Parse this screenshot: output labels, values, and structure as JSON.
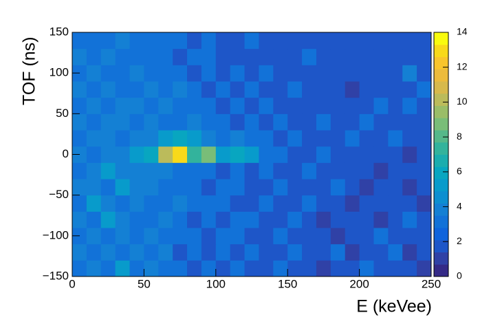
{
  "chart_data": {
    "type": "heatmap",
    "x_label": "E (keVee)",
    "y_label": "TOF (ns)",
    "xbins": [
      0,
      10,
      20,
      30,
      40,
      50,
      60,
      70,
      80,
      90,
      100,
      110,
      120,
      130,
      140,
      150,
      160,
      170,
      180,
      190,
      200,
      210,
      220,
      230,
      240,
      250
    ],
    "ybins": [
      -150,
      -130,
      -110,
      -90,
      -70,
      -50,
      -30,
      -10,
      10,
      30,
      50,
      70,
      90,
      110,
      130,
      150
    ],
    "z": [
      [
        3,
        4,
        3,
        5,
        3,
        4,
        3,
        3,
        2,
        3,
        2,
        3,
        2,
        2,
        3,
        2,
        2,
        1,
        2,
        2,
        3,
        2,
        2,
        2,
        1
      ],
      [
        4,
        3,
        4,
        3,
        4,
        3,
        4,
        2,
        3,
        2,
        3,
        2,
        3,
        2,
        2,
        3,
        2,
        2,
        3,
        1,
        2,
        2,
        3,
        1,
        2
      ],
      [
        3,
        4,
        3,
        4,
        3,
        4,
        3,
        3,
        3,
        2,
        3,
        3,
        2,
        2,
        3,
        2,
        2,
        2,
        1,
        2,
        2,
        3,
        2,
        2,
        2
      ],
      [
        4,
        3,
        5,
        4,
        3,
        3,
        4,
        3,
        2,
        3,
        2,
        3,
        3,
        2,
        2,
        3,
        2,
        1,
        2,
        2,
        2,
        1,
        2,
        3,
        2
      ],
      [
        3,
        5,
        4,
        3,
        4,
        3,
        3,
        4,
        3,
        3,
        3,
        2,
        2,
        3,
        2,
        2,
        3,
        2,
        2,
        1,
        2,
        2,
        2,
        2,
        1
      ],
      [
        4,
        4,
        3,
        5,
        4,
        4,
        3,
        3,
        3,
        2,
        3,
        3,
        2,
        2,
        3,
        2,
        2,
        2,
        3,
        2,
        1,
        2,
        2,
        1,
        2
      ],
      [
        3,
        4,
        5,
        4,
        4,
        4,
        4,
        3,
        3,
        3,
        2,
        3,
        2,
        3,
        2,
        2,
        3,
        2,
        2,
        2,
        2,
        1,
        2,
        2,
        2
      ],
      [
        4,
        3,
        4,
        4,
        5,
        6,
        10,
        13,
        7,
        9,
        5,
        6,
        5,
        3,
        3,
        2,
        2,
        3,
        2,
        2,
        2,
        2,
        2,
        1,
        2
      ],
      [
        3,
        4,
        4,
        3,
        4,
        4,
        5,
        6,
        5,
        4,
        3,
        4,
        3,
        3,
        2,
        3,
        2,
        2,
        2,
        3,
        2,
        2,
        3,
        2,
        2
      ],
      [
        4,
        3,
        4,
        4,
        3,
        4,
        3,
        3,
        4,
        3,
        3,
        2,
        3,
        2,
        3,
        2,
        2,
        3,
        2,
        2,
        3,
        2,
        2,
        2,
        2
      ],
      [
        3,
        4,
        3,
        4,
        4,
        3,
        4,
        3,
        3,
        3,
        2,
        3,
        2,
        3,
        2,
        2,
        2,
        2,
        2,
        2,
        2,
        3,
        2,
        3,
        2
      ],
      [
        4,
        3,
        4,
        3,
        3,
        4,
        3,
        4,
        3,
        2,
        3,
        2,
        3,
        2,
        2,
        3,
        2,
        2,
        2,
        1,
        2,
        2,
        2,
        2,
        3
      ],
      [
        3,
        4,
        3,
        3,
        4,
        3,
        3,
        3,
        2,
        3,
        2,
        3,
        2,
        3,
        2,
        2,
        2,
        2,
        2,
        2,
        2,
        2,
        2,
        4,
        2
      ],
      [
        4,
        3,
        4,
        3,
        3,
        3,
        3,
        2,
        3,
        3,
        2,
        2,
        2,
        2,
        2,
        2,
        3,
        2,
        2,
        2,
        2,
        2,
        2,
        2,
        2
      ],
      [
        3,
        3,
        3,
        4,
        3,
        3,
        3,
        3,
        2,
        3,
        2,
        2,
        3,
        2,
        2,
        2,
        2,
        2,
        2,
        2,
        2,
        2,
        2,
        2,
        2
      ]
    ],
    "xlim": [
      0,
      250
    ],
    "xticks": [
      0,
      50,
      100,
      150,
      200,
      250
    ],
    "ylim": [
      -150,
      150
    ],
    "yticks": [
      {
        "value": -150,
        "label": "−150"
      },
      {
        "value": -100,
        "label": "−100"
      },
      {
        "value": -50,
        "label": "−50"
      },
      0,
      50,
      100,
      150
    ],
    "zlim": [
      0,
      14
    ],
    "zticks": [
      0,
      2,
      4,
      6,
      8,
      10,
      12,
      14
    ],
    "palette": [
      "#352a87",
      "#3041a6",
      "#1e56c8",
      "#0f64dc",
      "#1272d8",
      "#1480d4",
      "#0d8fd0",
      "#089bcb",
      "#08a6c0",
      "#1badae",
      "#33b39c",
      "#55b88a",
      "#79bd78",
      "#9abd68",
      "#bbbb5b",
      "#d7b94c",
      "#ecbb3c",
      "#f9c52c",
      "#f8d91a",
      "#f9fb0e"
    ]
  }
}
